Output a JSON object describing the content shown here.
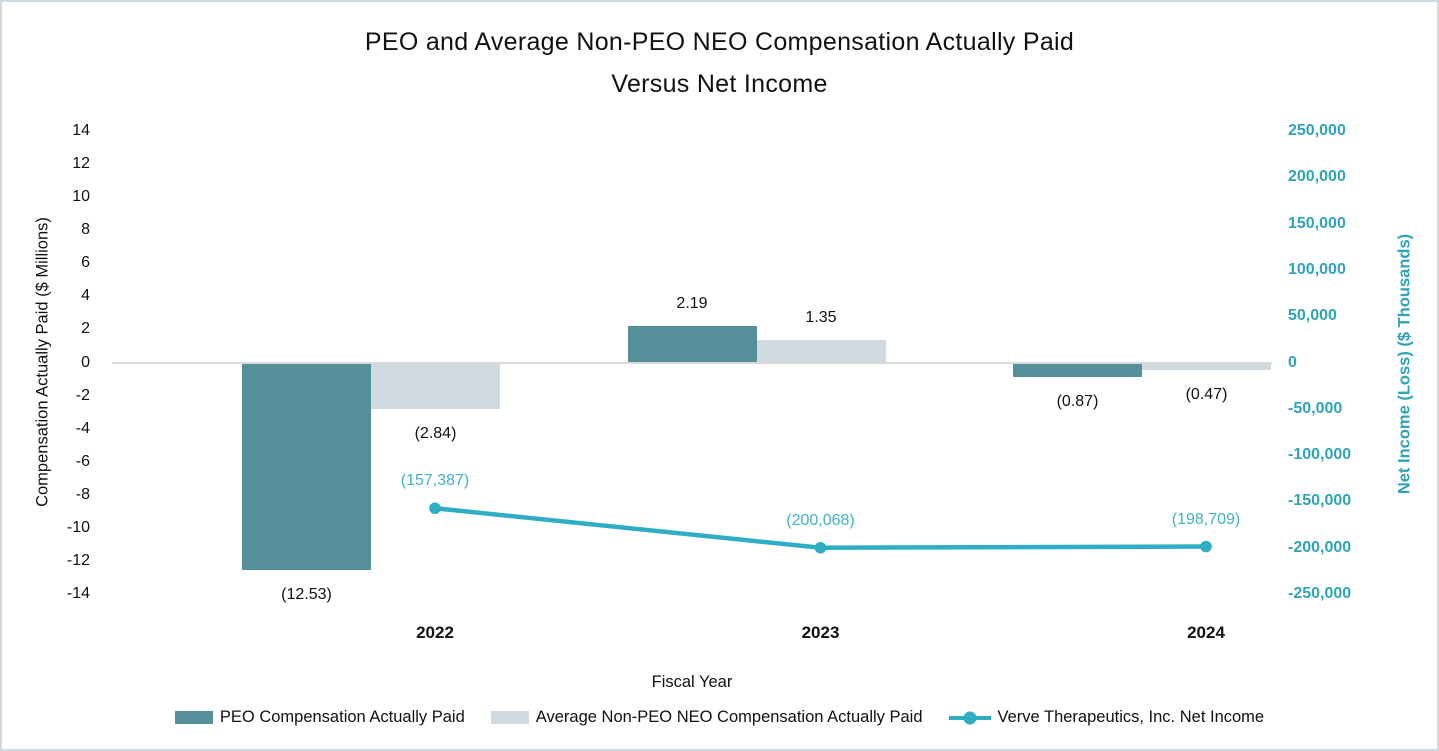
{
  "title": {
    "line1": "PEO and Average Non-PEO NEO Compensation Actually Paid",
    "line2": "Versus Net Income"
  },
  "colors": {
    "peo_bar": "#548f9a",
    "neo_bar": "#cfdbe1",
    "net_line": "#2faec3",
    "net_axis_text": "#2ea3ba",
    "net_label_text": "#41b1c6",
    "zero_gridline": "#d9d9d9",
    "frame_border": "#cedae1",
    "text": "#111111"
  },
  "chart_data": {
    "type": "combo",
    "categories": [
      "2022",
      "2023",
      "2024"
    ],
    "series": [
      {
        "name": "PEO Compensation Actually Paid",
        "type": "bar",
        "axis": "left",
        "values": [
          -12.53,
          2.19,
          -0.87
        ],
        "labels": [
          "(12.53)",
          "2.19",
          "(0.87)"
        ]
      },
      {
        "name": "Average Non-PEO NEO Compensation Actually Paid",
        "type": "bar",
        "axis": "left",
        "values": [
          -2.84,
          1.35,
          -0.47
        ],
        "labels": [
          "(2.84)",
          "1.35",
          "(0.47)"
        ]
      },
      {
        "name": "Verve Therapeutics, Inc. Net Income",
        "type": "line",
        "axis": "right",
        "values": [
          -157387,
          -200068,
          -198709
        ],
        "labels": [
          "(157,387)",
          "(200,068)",
          "(198,709)"
        ]
      }
    ],
    "left_axis": {
      "title": "Compensation Actually Paid ($ Millions)",
      "min": -14,
      "max": 14,
      "step": 2,
      "tick_values": [
        14,
        12,
        10,
        8,
        6,
        4,
        2,
        0,
        -2,
        -4,
        -6,
        -8,
        -10,
        -12,
        -14
      ],
      "tick_labels": [
        "14",
        "12",
        "10",
        "8",
        "6",
        "4",
        "2",
        "0",
        "-2",
        "-4",
        "-6",
        "-8",
        "-10",
        "-12",
        "-14"
      ]
    },
    "right_axis": {
      "title": "Net Income (Loss) ($ Thousands)",
      "min": -250000,
      "max": 250000,
      "step": 50000,
      "tick_values": [
        250000,
        200000,
        150000,
        100000,
        50000,
        0,
        -50000,
        -100000,
        -150000,
        -200000,
        -250000
      ],
      "tick_labels": [
        "250,000",
        "200,000",
        "150,000",
        "100,000",
        "50,000",
        "0",
        "-50,000",
        "-100,000",
        "-150,000",
        "-200,000",
        "-250,000"
      ]
    },
    "xlabel": "Fiscal Year",
    "grid": "horizontal zero line only",
    "legend_position": "bottom"
  }
}
